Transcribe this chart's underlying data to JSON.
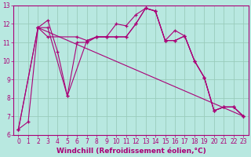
{
  "xlabel": "Windchill (Refroidissement éolien,°C)",
  "bg_color": "#b8e8e0",
  "line_color": "#aa0077",
  "marker": "+",
  "xlim": [
    -0.5,
    23.5
  ],
  "ylim": [
    6,
    13
  ],
  "yticks": [
    6,
    7,
    8,
    9,
    10,
    11,
    12,
    13
  ],
  "xticks": [
    0,
    1,
    2,
    3,
    4,
    5,
    6,
    7,
    8,
    9,
    10,
    11,
    12,
    13,
    14,
    15,
    16,
    17,
    18,
    19,
    20,
    21,
    22,
    23
  ],
  "lines": [
    {
      "x": [
        0,
        1,
        2,
        3,
        4,
        5,
        6,
        7,
        8,
        9,
        10,
        11,
        12,
        13,
        14,
        15,
        16,
        17,
        18,
        19,
        20,
        21,
        22,
        23
      ],
      "y": [
        6.3,
        6.7,
        11.8,
        12.2,
        10.5,
        8.1,
        11.0,
        11.0,
        11.3,
        11.3,
        12.0,
        11.9,
        12.5,
        12.85,
        12.7,
        11.1,
        11.65,
        11.35,
        10.0,
        9.1,
        7.3,
        7.5,
        7.5,
        7.0
      ]
    },
    {
      "x": [
        0,
        2,
        3,
        5,
        7,
        8,
        9,
        10,
        11,
        12,
        13,
        14,
        15,
        16,
        17,
        18,
        19,
        20,
        21,
        22,
        23
      ],
      "y": [
        6.3,
        11.8,
        11.8,
        8.1,
        11.1,
        11.3,
        11.3,
        11.3,
        11.3,
        12.0,
        12.85,
        12.7,
        11.1,
        11.1,
        11.35,
        10.0,
        9.1,
        7.3,
        7.5,
        7.5,
        7.0
      ]
    },
    {
      "x": [
        0,
        2,
        3,
        6,
        7,
        8,
        9,
        10,
        11,
        12,
        13,
        14,
        15,
        16,
        17,
        18,
        19,
        20,
        21,
        22,
        23
      ],
      "y": [
        6.3,
        11.8,
        11.3,
        11.3,
        11.1,
        11.3,
        11.3,
        11.3,
        11.3,
        12.0,
        12.85,
        12.7,
        11.1,
        11.1,
        11.35,
        10.0,
        9.1,
        7.3,
        7.5,
        7.5,
        7.0
      ]
    },
    {
      "x": [
        2,
        23
      ],
      "y": [
        11.8,
        7.0
      ]
    }
  ],
  "grid_color": "#99ccbb",
  "tick_fontsize": 5.5,
  "label_fontsize": 6.5
}
